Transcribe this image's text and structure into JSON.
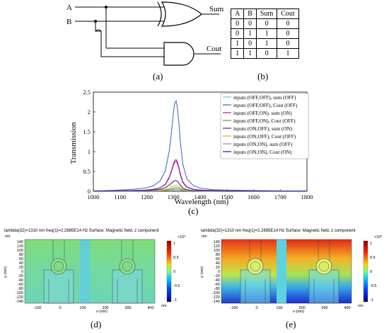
{
  "panel_a": {
    "input_a": "A",
    "input_b": "B",
    "output_sum": "Sum",
    "output_cout": "Cout",
    "label": "(a)"
  },
  "panel_b": {
    "headers": [
      "A",
      "B",
      "Sum",
      "Cout"
    ],
    "rows": [
      [
        "0",
        "0",
        "0",
        "0"
      ],
      [
        "0",
        "1",
        "1",
        "0"
      ],
      [
        "1",
        "0",
        "1",
        "0"
      ],
      [
        "1",
        "1",
        "0",
        "1"
      ]
    ],
    "label": "(b)"
  },
  "panel_c": {
    "label": "(c)",
    "chart_data": {
      "type": "line",
      "xlabel": "Wavelength (nm)",
      "ylabel": "Transmission",
      "xlim": [
        1000,
        1800
      ],
      "ylim": [
        0,
        2.5
      ],
      "xticks": [
        1000,
        1100,
        1200,
        1300,
        1400,
        1500,
        1600,
        1700,
        1800
      ],
      "yticks": [
        0,
        0.5,
        1,
        1.5,
        2,
        2.5
      ],
      "x": [
        1000,
        1050,
        1100,
        1150,
        1200,
        1225,
        1250,
        1270,
        1285,
        1295,
        1300,
        1305,
        1310,
        1315,
        1320,
        1325,
        1335,
        1350,
        1375,
        1400,
        1450,
        1500,
        1600,
        1700,
        1800
      ],
      "legend_position": "top-right",
      "series": [
        {
          "name": "inputs (OFF,OFF), sum (OFF)",
          "color": "#79c9d6",
          "values": [
            0.01,
            0.01,
            0.01,
            0.01,
            0.02,
            0.02,
            0.02,
            0.02,
            0.03,
            0.03,
            0.03,
            0.03,
            0.03,
            0.03,
            0.03,
            0.03,
            0.02,
            0.02,
            0.02,
            0.01,
            0.01,
            0.01,
            0.01,
            0.01,
            0.01
          ]
        },
        {
          "name": "inputs (OFF,OFF), Cout (OFF)",
          "color": "#4a6fb5",
          "values": [
            0.01,
            0.02,
            0.03,
            0.05,
            0.09,
            0.14,
            0.26,
            0.52,
            1.05,
            1.65,
            2.0,
            2.22,
            2.28,
            2.1,
            1.75,
            1.3,
            0.68,
            0.32,
            0.14,
            0.08,
            0.04,
            0.03,
            0.02,
            0.01,
            0.01
          ]
        },
        {
          "name": "inputs (OFF,ON), sum (ON)",
          "color": "#d81b9e",
          "values": [
            0.0,
            0.01,
            0.01,
            0.02,
            0.03,
            0.05,
            0.09,
            0.18,
            0.37,
            0.58,
            0.7,
            0.78,
            0.8,
            0.74,
            0.62,
            0.46,
            0.24,
            0.11,
            0.05,
            0.03,
            0.02,
            0.01,
            0.01,
            0.0,
            0.0
          ]
        },
        {
          "name": "inputs (OFF,ON), Cout (OFF)",
          "color": "#7a9a2a",
          "values": [
            0.0,
            0.0,
            0.0,
            0.01,
            0.01,
            0.01,
            0.02,
            0.03,
            0.05,
            0.07,
            0.08,
            0.09,
            0.09,
            0.09,
            0.08,
            0.06,
            0.03,
            0.02,
            0.01,
            0.01,
            0.0,
            0.0,
            0.0,
            0.0,
            0.0
          ]
        },
        {
          "name": "inputs (ON,OFF), sum (ON)",
          "color": "#7b2f8f",
          "values": [
            0.0,
            0.01,
            0.01,
            0.02,
            0.03,
            0.05,
            0.09,
            0.17,
            0.35,
            0.55,
            0.67,
            0.74,
            0.76,
            0.7,
            0.58,
            0.43,
            0.22,
            0.1,
            0.05,
            0.03,
            0.02,
            0.01,
            0.01,
            0.0,
            0.0
          ]
        },
        {
          "name": "inputs (ON,OFF), Cout (OFF)",
          "color": "#d4c21e",
          "values": [
            0.0,
            0.0,
            0.01,
            0.01,
            0.01,
            0.02,
            0.03,
            0.05,
            0.08,
            0.11,
            0.13,
            0.14,
            0.14,
            0.13,
            0.11,
            0.08,
            0.05,
            0.03,
            0.02,
            0.01,
            0.01,
            0.0,
            0.0,
            0.0,
            0.0
          ]
        },
        {
          "name": "inputs (ON,ON), sum (OFF)",
          "color": "#9a9a9a",
          "values": [
            0.0,
            0.0,
            0.0,
            0.0,
            0.01,
            0.01,
            0.01,
            0.02,
            0.03,
            0.04,
            0.05,
            0.05,
            0.05,
            0.05,
            0.04,
            0.03,
            0.02,
            0.01,
            0.01,
            0.0,
            0.0,
            0.0,
            0.0,
            0.0,
            0.0
          ]
        },
        {
          "name": "inputs (ON,ON), Cout (ON)",
          "color": "#3a2a8a",
          "values": [
            0.0,
            0.0,
            0.01,
            0.01,
            0.02,
            0.03,
            0.05,
            0.09,
            0.16,
            0.22,
            0.25,
            0.27,
            0.27,
            0.25,
            0.21,
            0.16,
            0.08,
            0.04,
            0.02,
            0.01,
            0.01,
            0.0,
            0.0,
            0.0,
            0.0
          ]
        }
      ]
    }
  },
  "panel_d": {
    "label": "(d)",
    "header": "lambda(32)=1310 nm freq(1)=2.2885E14 Hz  Surface: Magnetic field, z component",
    "y_unit": "nm",
    "y_axis": "y-(nm)",
    "x_axis": "x-(nm)",
    "x_unit": "nm",
    "yticks": [
      "140",
      "120",
      "100",
      "80",
      "60",
      "40",
      "20",
      "0",
      "-20",
      "-40",
      "-60",
      "-80",
      "-100",
      "-120",
      "-140"
    ],
    "xticks": [
      "-100",
      "0",
      "100",
      "200",
      "300",
      "400"
    ],
    "colorbar_exp": "×10³",
    "colorbar_ticks": [
      "1",
      "0.5",
      "0",
      "-0.5",
      "-1"
    ]
  },
  "panel_e": {
    "label": "(e)",
    "header": "lambda(32)=1310 nm freq(1)=2.2885E14 Hz  Surface: Magnetic field, z component",
    "y_unit": "nm",
    "y_axis": "y-(nm)",
    "x_axis": "x-(nm)",
    "x_unit": "nm",
    "yticks": [
      "140",
      "120",
      "100",
      "80",
      "60",
      "40",
      "20",
      "0",
      "-20",
      "-40",
      "-60",
      "-80",
      "-100",
      "-120",
      "-140"
    ],
    "xticks": [
      "-100",
      "0",
      "100",
      "200",
      "300",
      "400"
    ],
    "colorbar_exp": "×10³",
    "colorbar_ticks": [
      "1",
      "0.5",
      "0",
      "-0.5",
      "-1"
    ]
  }
}
